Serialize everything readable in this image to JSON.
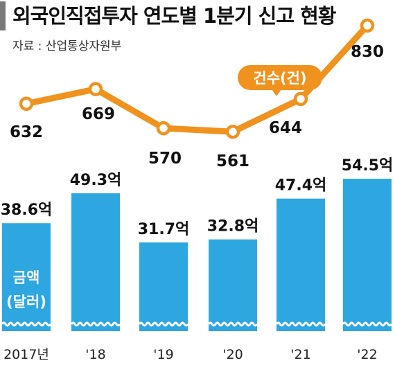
{
  "title": "외국인직접투자 연도별 1분기 신고 현황",
  "source": "자료 : 산업통상자원부",
  "chart_data": {
    "type": "bar",
    "categories": [
      "2017년",
      "'18",
      "'19",
      "'20",
      "'21",
      "'22"
    ],
    "series": [
      {
        "name": "금액(달러)",
        "type": "bar",
        "values": [
          38.6,
          49.3,
          31.7,
          32.8,
          47.4,
          54.5
        ],
        "value_labels": [
          "38.6억",
          "49.3억",
          "31.7억",
          "32.8억",
          "47.4억",
          "54.5억"
        ],
        "label_line1": "금액",
        "label_line2": "(달러)",
        "color": "#2ea7e0"
      },
      {
        "name": "건수(건)",
        "type": "line",
        "values": [
          632,
          669,
          570,
          561,
          644,
          830
        ],
        "value_labels": [
          "632",
          "669",
          "570",
          "561",
          "644",
          "830"
        ],
        "color": "#f0921e"
      }
    ],
    "legend": "top-right"
  }
}
